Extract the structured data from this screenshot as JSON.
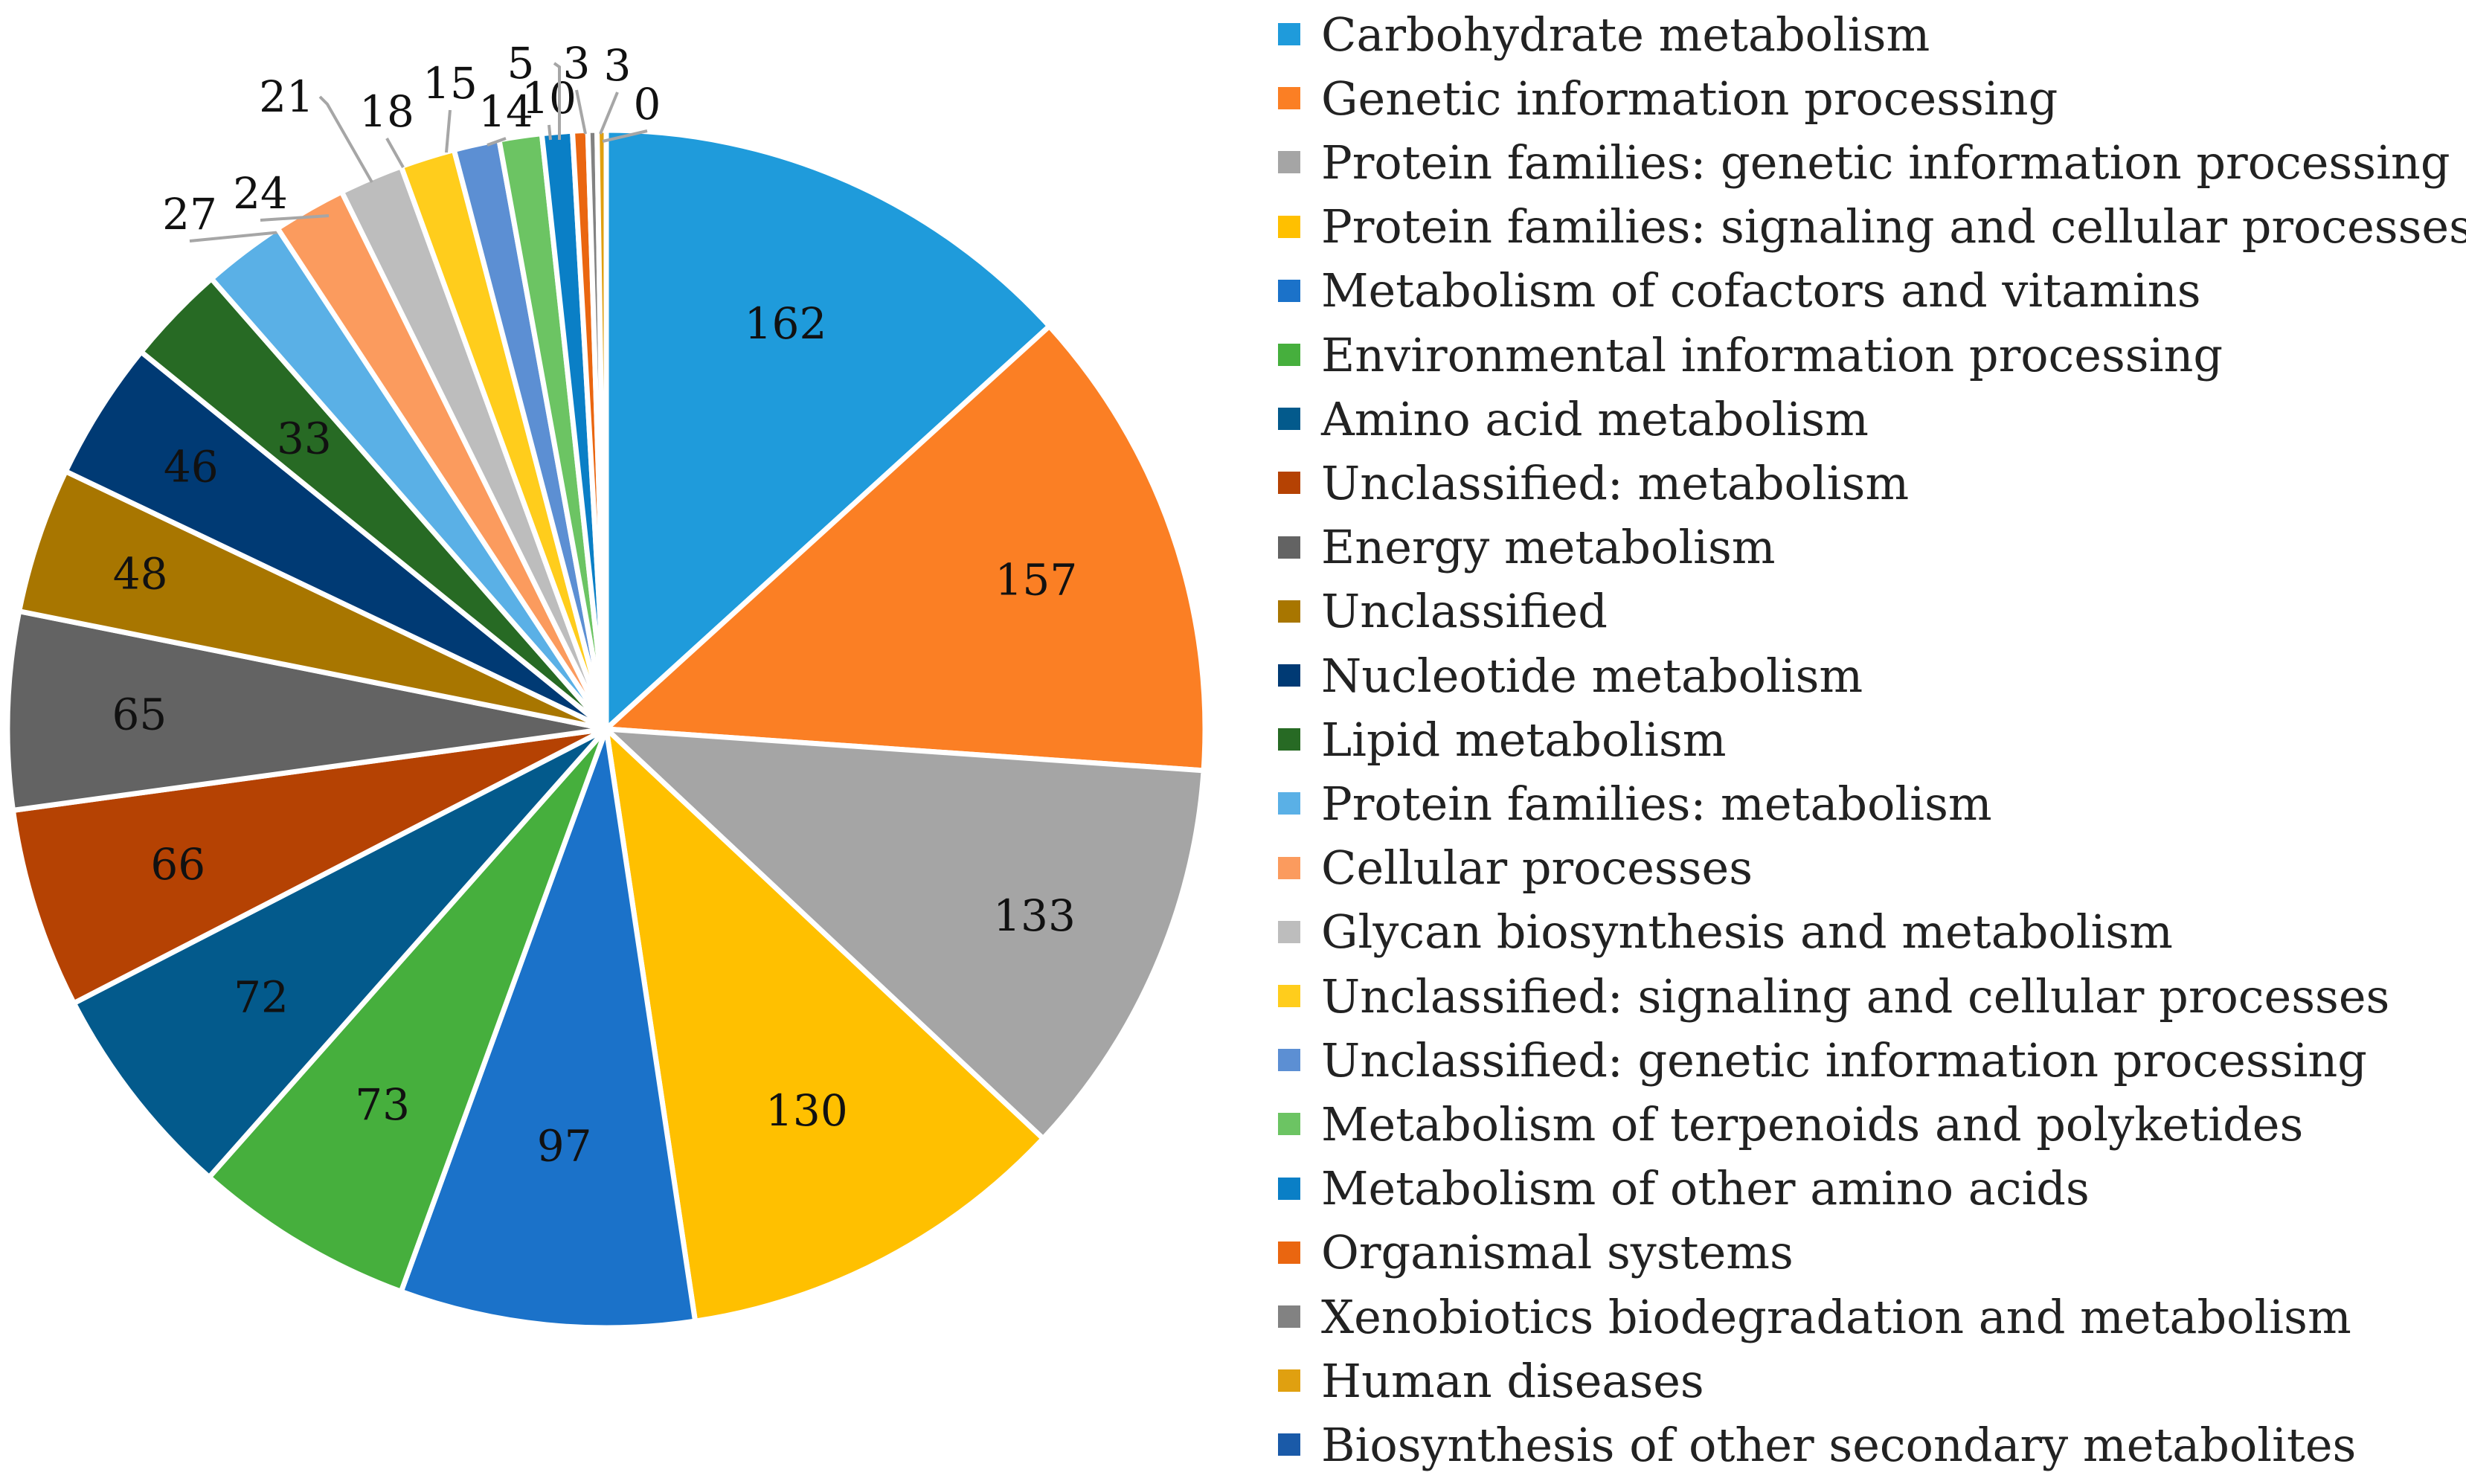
{
  "chart_data": {
    "type": "pie",
    "title": "",
    "start": "12 o'clock, clockwise",
    "legend_position": "right",
    "slices": [
      {
        "label": "Carbohydrate metabolism",
        "value": 162,
        "color": "#1F9BDB"
      },
      {
        "label": "Genetic information processing",
        "value": 157,
        "color": "#FB7F24"
      },
      {
        "label": "Protein families: genetic information processing",
        "value": 133,
        "color": "#A5A5A5"
      },
      {
        "label": "Protein families: signaling and cellular processes",
        "value": 130,
        "color": "#FFC000"
      },
      {
        "label": "Metabolism of cofactors and vitamins",
        "value": 97,
        "color": "#1B72C9"
      },
      {
        "label": "Environmental information processing",
        "value": 73,
        "color": "#46AF3D"
      },
      {
        "label": "Amino acid metabolism",
        "value": 72,
        "color": "#035A8C"
      },
      {
        "label": "Unclassified: metabolism",
        "value": 66,
        "color": "#B54203"
      },
      {
        "label": "Energy metabolism",
        "value": 65,
        "color": "#636363"
      },
      {
        "label": "Unclassified",
        "value": 48,
        "color": "#A87600"
      },
      {
        "label": "Nucleotide metabolism",
        "value": 46,
        "color": "#003A74"
      },
      {
        "label": "Lipid metabolism",
        "value": 33,
        "color": "#276A24"
      },
      {
        "label": "Protein families: metabolism",
        "value": 27,
        "color": "#5AB0E6"
      },
      {
        "label": "Cellular processes",
        "value": 24,
        "color": "#FB9B5E"
      },
      {
        "label": "Glycan biosynthesis and metabolism",
        "value": 21,
        "color": "#BDBDBD"
      },
      {
        "label": "Unclassified: signaling and cellular processes",
        "value": 18,
        "color": "#FFCD1C"
      },
      {
        "label": "Unclassified: genetic information processing",
        "value": 15,
        "color": "#5C8FD3"
      },
      {
        "label": "Metabolism of terpenoids and polyketides",
        "value": 14,
        "color": "#6CC463"
      },
      {
        "label": "Metabolism of other amino acids",
        "value": 10,
        "color": "#0A7FC6"
      },
      {
        "label": "Organismal systems",
        "value": 5,
        "color": "#EA6610"
      },
      {
        "label": "Xenobiotics biodegradation and metabolism",
        "value": 3,
        "color": "#828282"
      },
      {
        "label": "Human diseases",
        "value": 3,
        "color": "#E0A010"
      },
      {
        "label": "Biosynthesis of other secondary metabolites",
        "value": 0,
        "color": "#1A5AA8"
      }
    ]
  }
}
